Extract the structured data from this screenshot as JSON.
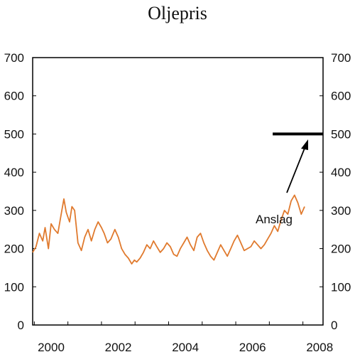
{
  "chart_data": {
    "type": "line",
    "title": "Oljepris",
    "xlabel": "",
    "ylabel": "",
    "xlim": [
      1999.95,
      2008.6
    ],
    "ylim": [
      0,
      700
    ],
    "grid": false,
    "legend": "none",
    "x_ticks": [
      2000,
      2002,
      2004,
      2006,
      2008
    ],
    "x_tick_labels": [
      "2000",
      "2002",
      "2004",
      "2006",
      "2008"
    ],
    "y_ticks": [
      0,
      100,
      200,
      300,
      400,
      500,
      600,
      700
    ],
    "y_tick_labels": [
      "0",
      "100",
      "200",
      "300",
      "400",
      "500",
      "600",
      "700"
    ],
    "y_tick_labels_right": [
      "0",
      "100",
      "200",
      "300",
      "400",
      "500",
      "600",
      "700"
    ],
    "series": [
      {
        "color": "#e07a2e",
        "points": [
          [
            1999.95,
            190
          ],
          [
            2000.05,
            205
          ],
          [
            2000.15,
            240
          ],
          [
            2000.25,
            220
          ],
          [
            2000.32,
            255
          ],
          [
            2000.42,
            200
          ],
          [
            2000.5,
            265
          ],
          [
            2000.6,
            250
          ],
          [
            2000.7,
            240
          ],
          [
            2000.82,
            300
          ],
          [
            2000.88,
            330
          ],
          [
            2000.95,
            295
          ],
          [
            2001.05,
            270
          ],
          [
            2001.12,
            310
          ],
          [
            2001.2,
            300
          ],
          [
            2001.3,
            215
          ],
          [
            2001.4,
            195
          ],
          [
            2001.5,
            230
          ],
          [
            2001.6,
            250
          ],
          [
            2001.7,
            220
          ],
          [
            2001.8,
            250
          ],
          [
            2001.9,
            270
          ],
          [
            2002.0,
            255
          ],
          [
            2002.08,
            240
          ],
          [
            2002.18,
            215
          ],
          [
            2002.28,
            225
          ],
          [
            2002.4,
            250
          ],
          [
            2002.5,
            230
          ],
          [
            2002.6,
            200
          ],
          [
            2002.7,
            185
          ],
          [
            2002.8,
            175
          ],
          [
            2002.9,
            160
          ],
          [
            2002.98,
            170
          ],
          [
            2003.05,
            165
          ],
          [
            2003.15,
            175
          ],
          [
            2003.25,
            190
          ],
          [
            2003.35,
            210
          ],
          [
            2003.45,
            200
          ],
          [
            2003.55,
            220
          ],
          [
            2003.65,
            205
          ],
          [
            2003.75,
            190
          ],
          [
            2003.85,
            200
          ],
          [
            2003.95,
            215
          ],
          [
            2004.05,
            205
          ],
          [
            2004.15,
            185
          ],
          [
            2004.25,
            180
          ],
          [
            2004.35,
            200
          ],
          [
            2004.45,
            215
          ],
          [
            2004.55,
            230
          ],
          [
            2004.65,
            210
          ],
          [
            2004.75,
            195
          ],
          [
            2004.85,
            230
          ],
          [
            2004.95,
            240
          ],
          [
            2005.05,
            215
          ],
          [
            2005.15,
            195
          ],
          [
            2005.25,
            180
          ],
          [
            2005.35,
            170
          ],
          [
            2005.45,
            190
          ],
          [
            2005.55,
            210
          ],
          [
            2005.65,
            195
          ],
          [
            2005.75,
            180
          ],
          [
            2005.85,
            200
          ],
          [
            2005.95,
            220
          ],
          [
            2006.05,
            235
          ],
          [
            2006.15,
            215
          ],
          [
            2006.25,
            195
          ],
          [
            2006.35,
            200
          ],
          [
            2006.45,
            205
          ],
          [
            2006.55,
            220
          ],
          [
            2006.65,
            210
          ],
          [
            2006.75,
            200
          ],
          [
            2006.85,
            210
          ],
          [
            2006.95,
            225
          ],
          [
            2007.05,
            240
          ],
          [
            2007.15,
            260
          ],
          [
            2007.25,
            245
          ],
          [
            2007.35,
            275
          ],
          [
            2007.45,
            300
          ],
          [
            2007.55,
            290
          ],
          [
            2007.65,
            325
          ],
          [
            2007.75,
            340
          ],
          [
            2007.85,
            320
          ],
          [
            2007.95,
            290
          ],
          [
            2008.05,
            310
          ]
        ]
      }
    ],
    "annotations": [
      {
        "text": "Anslag",
        "value": 500,
        "x_start": 2007.1,
        "x_end": 2008.6
      }
    ]
  }
}
